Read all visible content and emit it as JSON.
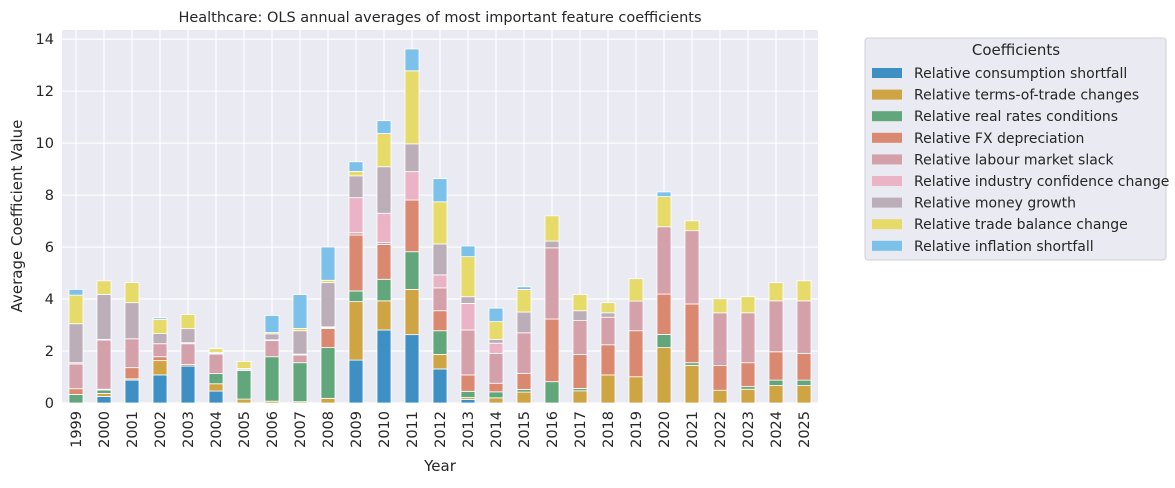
{
  "chart_data": {
    "type": "bar",
    "stacked": true,
    "title": "Healthcare: OLS annual averages of most important feature coefficients",
    "xlabel": "Year",
    "ylabel": "Average Coefficient Value",
    "ylim": [
      0,
      14.35
    ],
    "yticks": [
      0,
      2,
      4,
      6,
      8,
      10,
      12,
      14
    ],
    "grid": true,
    "legend": {
      "title": "Coefficients",
      "placement": "outside-right-top"
    },
    "categories": [
      "1999",
      "2000",
      "2001",
      "2002",
      "2003",
      "2004",
      "2005",
      "2006",
      "2007",
      "2008",
      "2009",
      "2010",
      "2011",
      "2012",
      "2013",
      "2014",
      "2015",
      "2016",
      "2017",
      "2018",
      "2019",
      "2020",
      "2021",
      "2022",
      "2023",
      "2024",
      "2025"
    ],
    "series": [
      {
        "name": "Relative consumption shortfall",
        "color": "#3d8fc4",
        "values": [
          0,
          0.25,
          0.88,
          1.08,
          1.42,
          0.46,
          0,
          0,
          0,
          0,
          1.65,
          2.81,
          2.63,
          1.31,
          0.14,
          0,
          0,
          0,
          0,
          0,
          0,
          0,
          0,
          0,
          0,
          0,
          0
        ]
      },
      {
        "name": "Relative terms-of-trade changes",
        "color": "#cfa443",
        "values": [
          0,
          0.12,
          0.05,
          0.55,
          0,
          0.28,
          0.15,
          0.07,
          0.05,
          0.18,
          2.25,
          1.12,
          1.74,
          0.56,
          0.07,
          0.2,
          0.42,
          0,
          0.47,
          1.08,
          1.01,
          2.13,
          1.45,
          0.49,
          0.53,
          0.67,
          0.67
        ]
      },
      {
        "name": "Relative real rates conditions",
        "color": "#62a67b",
        "values": [
          0.33,
          0.13,
          0,
          0,
          0,
          0.39,
          1.1,
          1.71,
          1.5,
          1.95,
          0.41,
          0.83,
          1.45,
          0.91,
          0.24,
          0.23,
          0.1,
          0.82,
          0.09,
          0,
          0,
          0.51,
          0.1,
          0,
          0.1,
          0.21,
          0.21
        ]
      },
      {
        "name": "Relative FX depreciation",
        "color": "#da8870",
        "values": [
          0.22,
          0.03,
          0.43,
          0.15,
          0.06,
          0,
          0,
          0,
          0,
          0.74,
          2.15,
          1.34,
          1.99,
          0.77,
          0.63,
          0.33,
          0.62,
          2.41,
          1.31,
          1.16,
          1.77,
          1.55,
          2.26,
          0.95,
          0.92,
          1.09,
          1.03
        ]
      },
      {
        "name": "Relative labour market slack",
        "color": "#d4a0a9",
        "values": [
          0.95,
          1.89,
          1.11,
          0.5,
          0.8,
          0.75,
          0,
          0.62,
          0.3,
          0.03,
          0.09,
          0.07,
          0,
          0.88,
          1.73,
          1.15,
          1.56,
          2.74,
          1.3,
          1.06,
          1.14,
          2.59,
          2.82,
          2.03,
          1.92,
          1.96,
          2.02
        ]
      },
      {
        "name": "Relative industry confidence change",
        "color": "#ebb4c6",
        "values": [
          0.05,
          0.03,
          0,
          0,
          0.04,
          0.03,
          0.03,
          0.03,
          0.03,
          0.03,
          1.35,
          1.13,
          1.09,
          0.5,
          1.02,
          0.39,
          0,
          0,
          0,
          0,
          0,
          0,
          0,
          0,
          0,
          0,
          0
        ]
      },
      {
        "name": "Relative money growth",
        "color": "#bcaeb8",
        "values": [
          1.5,
          1.73,
          1.39,
          0.39,
          0.54,
          0.04,
          0.05,
          0.23,
          0.9,
          1.7,
          0.84,
          1.79,
          1.07,
          1.19,
          0.26,
          0.15,
          0.8,
          0.26,
          0.38,
          0.17,
          0,
          0,
          0,
          0,
          0,
          0,
          0
        ]
      },
      {
        "name": "Relative trade balance change",
        "color": "#e6db69",
        "values": [
          1.1,
          0.52,
          0.77,
          0.55,
          0.54,
          0.14,
          0.27,
          0.05,
          0.09,
          0.09,
          0.17,
          1.28,
          2.81,
          1.62,
          1.54,
          0.68,
          0.87,
          0.97,
          0.62,
          0.39,
          0.86,
          1.16,
          0.38,
          0.54,
          0.62,
          0.7,
          0.77
        ]
      },
      {
        "name": "Relative inflation shortfall",
        "color": "#7bc1ea",
        "values": [
          0.22,
          0,
          0,
          0.06,
          0,
          0,
          0,
          0.66,
          1.3,
          1.28,
          0.37,
          0.49,
          0.84,
          0.89,
          0.41,
          0.52,
          0.1,
          0,
          0,
          0,
          0,
          0.18,
          0,
          0,
          0,
          0,
          0
        ]
      }
    ],
    "colors": {
      "plot_background": "#eaeaf2",
      "grid": "#ffffff"
    }
  }
}
